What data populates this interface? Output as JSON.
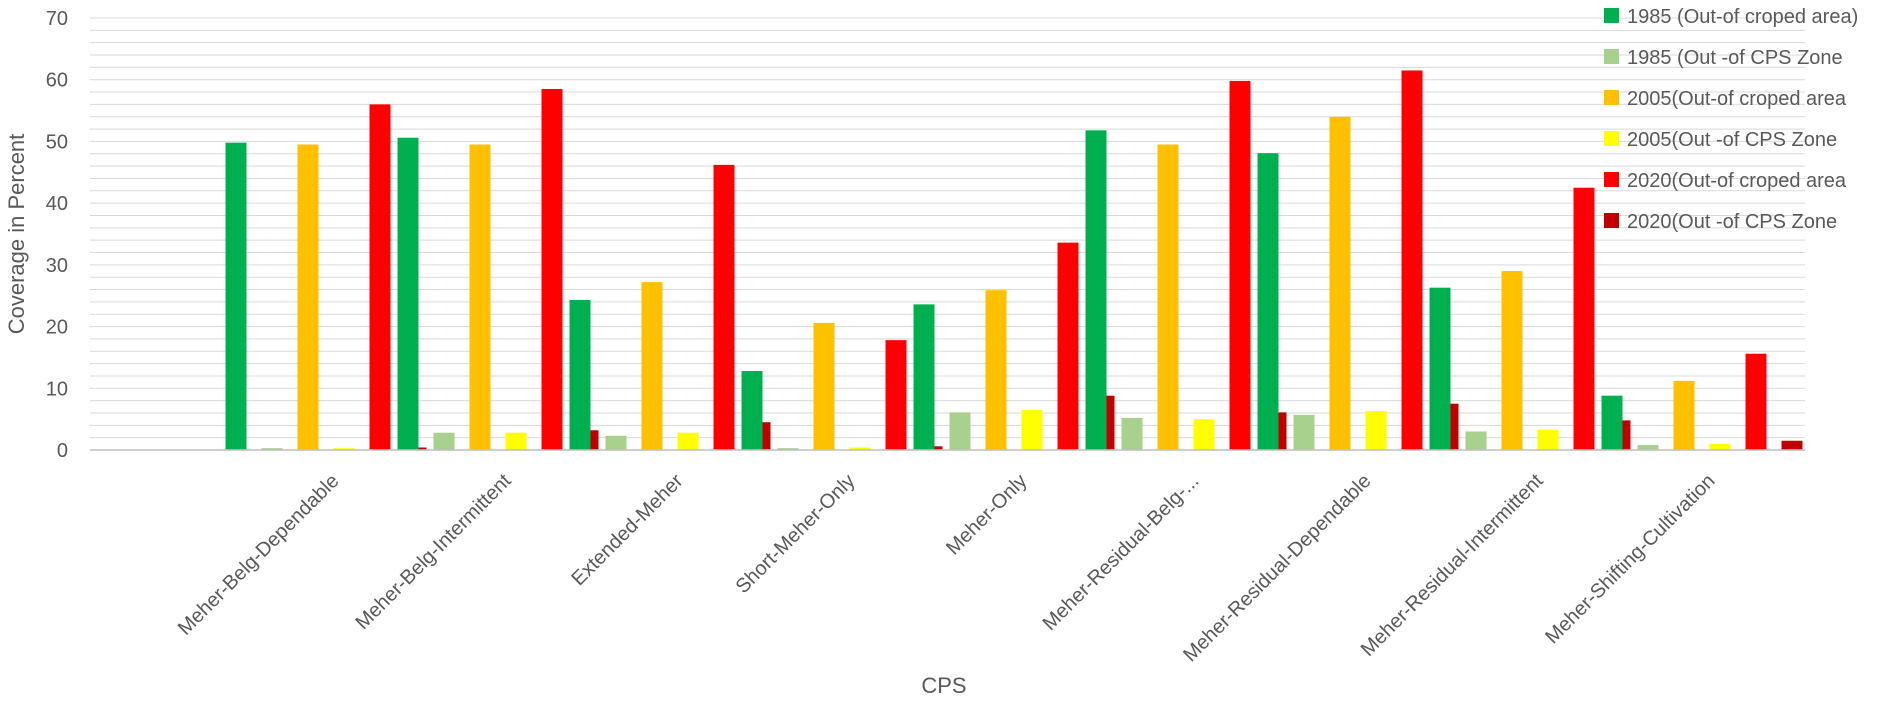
{
  "chart_data": {
    "type": "bar",
    "xlabel": "CPS",
    "ylabel": "Coverage in Percent",
    "ylim": [
      0,
      70
    ],
    "yticks": [
      0,
      10,
      20,
      30,
      40,
      50,
      60,
      70
    ],
    "grid": true,
    "legend_position": "top-right",
    "categories": [
      "Meher-Belg-Dependable",
      "Meher-Belg-Intermittent",
      "Extended-Meher",
      "Short-Meher-Only",
      "Meher-Only",
      "Meher-Residual-Belg-...",
      "Meher-Residual-Dependable",
      "Meher-Residual-Intermittent",
      "Meher-Shifting-Cultivation"
    ],
    "series": [
      {
        "name": "1985 (Out-of croped area)",
        "color": "#00b050",
        "values": [
          49.8,
          50.6,
          24.3,
          12.8,
          23.6,
          51.8,
          48.1,
          26.3,
          8.8
        ]
      },
      {
        "name": "1985 (Out -of CPS Zone",
        "color": "#a9d18e",
        "values": [
          0.3,
          2.8,
          2.3,
          0.3,
          6.1,
          5.2,
          5.7,
          3.0,
          0.8
        ]
      },
      {
        "name": "2005(Out-of croped area",
        "color": "#ffc000",
        "values": [
          49.5,
          49.5,
          27.2,
          20.6,
          25.9,
          49.5,
          54.0,
          29.0,
          11.2
        ]
      },
      {
        "name": "2005(Out -of CPS Zone",
        "color": "#ffff00",
        "values": [
          0.3,
          2.8,
          2.8,
          0.4,
          6.5,
          5.0,
          6.3,
          3.3,
          1.0
        ]
      },
      {
        "name": "2020(Out-of croped area",
        "color": "#ff0000",
        "values": [
          56.0,
          58.5,
          46.2,
          17.8,
          33.6,
          59.8,
          61.5,
          42.5,
          15.6
        ]
      },
      {
        "name": "2020(Out -of CPS Zone",
        "color": "#c00000",
        "values": [
          0.4,
          3.2,
          4.5,
          0.6,
          8.8,
          6.1,
          7.5,
          4.8,
          1.5
        ]
      }
    ]
  }
}
